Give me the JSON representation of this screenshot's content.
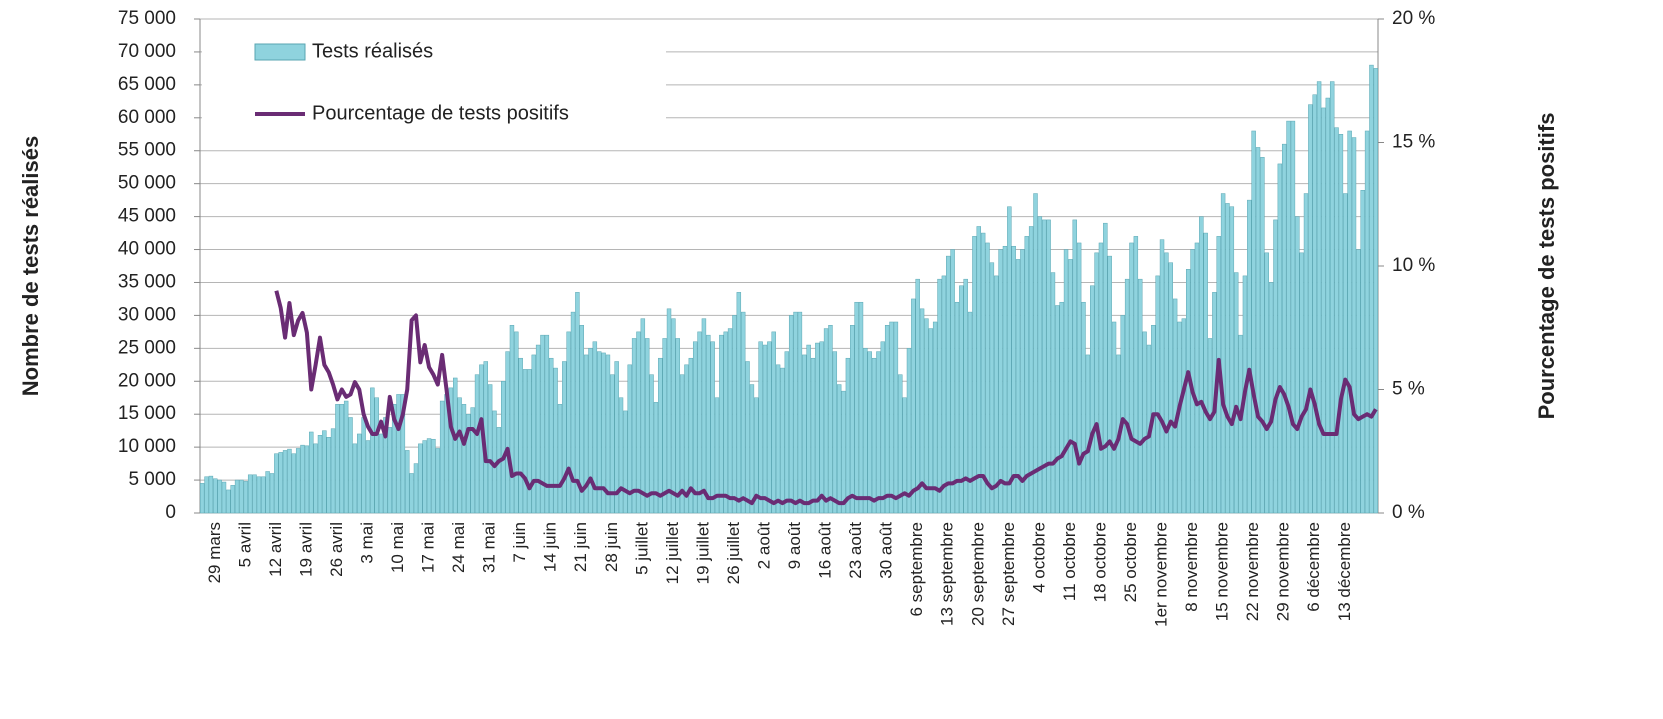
{
  "chart_data": {
    "type": "bar",
    "y_label": "Nombre de tests réalisés",
    "y2_label": "Pourcentage de tests positifs",
    "legend": "upper left",
    "grid": true,
    "categories": [
      null,
      null,
      null,
      "29 mars",
      null,
      null,
      null,
      null,
      null,
      null,
      "5 avril",
      null,
      null,
      null,
      null,
      null,
      null,
      "12 avril",
      null,
      null,
      null,
      null,
      null,
      null,
      "19 avril",
      null,
      null,
      null,
      null,
      null,
      null,
      "26 avril",
      null,
      null,
      null,
      null,
      null,
      null,
      "3 mai",
      null,
      null,
      null,
      null,
      null,
      null,
      "10 mai",
      null,
      null,
      null,
      null,
      null,
      null,
      "17 mai",
      null,
      null,
      null,
      null,
      null,
      null,
      "24 mai",
      null,
      null,
      null,
      null,
      null,
      null,
      "31 mai",
      null,
      null,
      null,
      null,
      null,
      null,
      "7 juin",
      null,
      null,
      null,
      null,
      null,
      null,
      "14 juin",
      null,
      null,
      null,
      null,
      null,
      null,
      "21 juin",
      null,
      null,
      null,
      null,
      null,
      null,
      "28 juin",
      null,
      null,
      null,
      null,
      null,
      null,
      "5 juillet",
      null,
      null,
      null,
      null,
      null,
      null,
      "12 juillet",
      null,
      null,
      null,
      null,
      null,
      null,
      "19 juillet",
      null,
      null,
      null,
      null,
      null,
      null,
      "26 juillet",
      null,
      null,
      null,
      null,
      null,
      null,
      "2 août",
      null,
      null,
      null,
      null,
      null,
      null,
      "9 août",
      null,
      null,
      null,
      null,
      null,
      null,
      "16 août",
      null,
      null,
      null,
      null,
      null,
      null,
      "23 août",
      null,
      null,
      null,
      null,
      null,
      null,
      "30 août",
      null,
      null,
      null,
      null,
      null,
      null,
      "6 septembre",
      null,
      null,
      null,
      null,
      null,
      null,
      "13 septembre",
      null,
      null,
      null,
      null,
      null,
      null,
      "20 septembre",
      null,
      null,
      null,
      null,
      null,
      null,
      "27 septembre",
      null,
      null,
      null,
      null,
      null,
      null,
      "4 octobre",
      null,
      null,
      null,
      null,
      null,
      null,
      "11 octobre",
      null,
      null,
      null,
      null,
      null,
      null,
      "18 octobre",
      null,
      null,
      null,
      null,
      null,
      null,
      "25 octobre",
      null,
      null,
      null,
      null,
      null,
      null,
      "1er novembre",
      null,
      null,
      null,
      null,
      null,
      null,
      "8 novembre",
      null,
      null,
      null,
      null,
      null,
      null,
      "15 novembre",
      null,
      null,
      null,
      null,
      null,
      null,
      "22 novembre",
      null,
      null,
      null,
      null,
      null,
      null,
      "29 novembre",
      null,
      null,
      null,
      null,
      null,
      null,
      "6 décembre",
      null,
      null,
      null,
      null,
      null,
      null,
      "13 décembre",
      null,
      null,
      null,
      null,
      null,
      null,
      null
    ],
    "series": [
      {
        "name": "Tests réalisés",
        "type": "bar",
        "color": "#8fd3de",
        "values": [
          4500,
          5500,
          5600,
          5200,
          5000,
          4700,
          3500,
          4200,
          5000,
          5000,
          4800,
          5800,
          5800,
          5500,
          5500,
          6300,
          6000,
          9000,
          9200,
          9500,
          9700,
          9000,
          9800,
          10300,
          10200,
          12300,
          10500,
          11800,
          12500,
          11500,
          12800,
          16500,
          16500,
          17000,
          14500,
          10500,
          12000,
          14500,
          11000,
          19000,
          17500,
          12000,
          14500,
          13000,
          16500,
          18000,
          18000,
          9500,
          6000,
          7500,
          10500,
          11000,
          11300,
          11200,
          9800,
          17000,
          18000,
          19000,
          20500,
          17500,
          16500,
          15000,
          16000,
          21000,
          22500,
          23000,
          19500,
          15500,
          13000,
          20000,
          24500,
          28500,
          27500,
          23500,
          21800,
          21800,
          24000,
          25500,
          27000,
          27000,
          23500,
          22000,
          16500,
          23000,
          27500,
          30500,
          33500,
          28500,
          24000,
          25000,
          26000,
          24500,
          24300,
          24000,
          21000,
          23000,
          17500,
          15500,
          22500,
          26500,
          27500,
          29500,
          26500,
          21000,
          16800,
          23500,
          26500,
          31000,
          29500,
          26500,
          21000,
          22500,
          23500,
          26000,
          27500,
          29500,
          27000,
          26000,
          17500,
          27000,
          27500,
          28000,
          30000,
          33500,
          30500,
          23000,
          19500,
          17500,
          26000,
          25500,
          26000,
          27500,
          22500,
          22000,
          24500,
          30000,
          30500,
          30500,
          24000,
          25500,
          23500,
          25800,
          26000,
          28000,
          28500,
          24500,
          19500,
          18500,
          23500,
          28500,
          32000,
          32000,
          25000,
          24500,
          23500,
          24500,
          26000,
          28500,
          29000,
          29000,
          21000,
          17500,
          25000,
          32500,
          35500,
          31000,
          29500,
          28000,
          29000,
          35500,
          36000,
          39000,
          40000,
          32000,
          34500,
          35500,
          30500,
          42000,
          43500,
          42500,
          41000,
          38000,
          36000,
          40000,
          40500,
          46500,
          40500,
          38500,
          40000,
          42000,
          43500,
          48500,
          45000,
          44500,
          44500,
          36500,
          31500,
          32000,
          40000,
          38500,
          44500,
          41000,
          32000,
          24000,
          34500,
          39500,
          41000,
          44000,
          39000,
          29000,
          24000,
          30000,
          35500,
          41000,
          42000,
          35500,
          27500,
          25500,
          28500,
          36000,
          41500,
          39500,
          38000,
          32500,
          29000,
          29500,
          37000,
          40000,
          41000,
          45000,
          42500,
          26500,
          33500,
          42000,
          48500,
          47000,
          46500,
          36500,
          27000,
          36000,
          47500,
          58000,
          55500,
          54000,
          39500,
          35000,
          44500,
          53000,
          56000,
          59500,
          59500,
          45000,
          39500,
          48500,
          62000,
          63500,
          65500,
          61500,
          63000,
          65500,
          58500,
          57500,
          48500,
          58000,
          57000,
          40000,
          49000,
          58000,
          68000,
          67500
        ]
      },
      {
        "name": "Pourcentage de tests positifs",
        "type": "line",
        "axis": "y2",
        "color": "#6a2c74",
        "values": [
          null,
          null,
          null,
          null,
          null,
          null,
          null,
          null,
          null,
          null,
          null,
          null,
          null,
          null,
          null,
          null,
          null,
          9.0,
          8.3,
          7.1,
          8.5,
          7.2,
          7.8,
          8.1,
          7.3,
          5.0,
          6.0,
          7.1,
          6.0,
          5.7,
          5.2,
          4.6,
          5.0,
          4.7,
          4.8,
          5.3,
          5.0,
          4.0,
          3.5,
          3.2,
          3.2,
          3.7,
          3.1,
          4.7,
          3.8,
          3.4,
          4.0,
          5.0,
          7.8,
          8.0,
          6.1,
          6.8,
          5.9,
          5.6,
          5.2,
          6.4,
          5.0,
          3.5,
          3.0,
          3.3,
          2.8,
          3.4,
          3.4,
          3.2,
          3.8,
          2.1,
          2.1,
          1.9,
          2.1,
          2.2,
          2.6,
          1.5,
          1.6,
          1.6,
          1.4,
          1.0,
          1.3,
          1.3,
          1.2,
          1.1,
          1.1,
          1.1,
          1.1,
          1.4,
          1.8,
          1.3,
          1.3,
          0.9,
          1.1,
          1.4,
          1.0,
          1.0,
          1.0,
          0.8,
          0.8,
          0.8,
          1.0,
          0.9,
          0.8,
          0.9,
          0.9,
          0.8,
          0.7,
          0.8,
          0.8,
          0.7,
          0.8,
          0.9,
          0.8,
          0.7,
          0.9,
          0.7,
          1.0,
          0.8,
          0.8,
          0.9,
          0.6,
          0.6,
          0.7,
          0.7,
          0.7,
          0.6,
          0.6,
          0.5,
          0.6,
          0.5,
          0.4,
          0.7,
          0.6,
          0.6,
          0.5,
          0.4,
          0.5,
          0.4,
          0.5,
          0.5,
          0.4,
          0.5,
          0.4,
          0.4,
          0.5,
          0.5,
          0.7,
          0.5,
          0.6,
          0.5,
          0.4,
          0.4,
          0.6,
          0.7,
          0.6,
          0.6,
          0.6,
          0.6,
          0.5,
          0.6,
          0.6,
          0.7,
          0.7,
          0.6,
          0.7,
          0.8,
          0.7,
          0.9,
          1.0,
          1.2,
          1.0,
          1.0,
          1.0,
          0.9,
          1.1,
          1.2,
          1.2,
          1.3,
          1.3,
          1.4,
          1.3,
          1.4,
          1.5,
          1.5,
          1.2,
          1.0,
          1.1,
          1.3,
          1.2,
          1.2,
          1.5,
          1.5,
          1.3,
          1.5,
          1.6,
          1.7,
          1.8,
          1.9,
          2.0,
          2.0,
          2.2,
          2.3,
          2.6,
          2.9,
          2.8,
          2.0,
          2.4,
          2.5,
          3.2,
          3.6,
          2.6,
          2.7,
          2.9,
          2.6,
          3.0,
          3.8,
          3.6,
          3.0,
          2.9,
          2.8,
          3.0,
          3.1,
          4.0,
          4.0,
          3.7,
          3.3,
          3.7,
          3.5,
          4.3,
          5.0,
          5.7,
          4.9,
          4.4,
          4.5,
          4.1,
          3.8,
          4.1,
          6.2,
          4.4,
          3.9,
          3.6,
          4.3,
          3.8,
          4.9,
          5.8,
          4.8,
          3.9,
          3.7,
          3.4,
          3.7,
          4.6,
          5.1,
          4.8,
          4.3,
          3.6,
          3.4,
          3.9,
          4.2,
          5.0,
          4.4,
          3.6,
          3.2,
          3.2,
          3.2,
          3.2,
          4.6,
          5.4,
          5.1,
          4.0,
          3.8,
          3.9,
          4.0,
          3.9,
          4.2
        ]
      }
    ],
    "ylim": [
      0,
      75000
    ],
    "yticks": [
      0,
      {
        "value": 5000,
        "label": "5 000"
      },
      {
        "value": 10000,
        "label": "10 000"
      },
      {
        "value": 15000,
        "label": "15 000"
      },
      {
        "value": 20000,
        "label": "20 000"
      },
      {
        "value": 25000,
        "label": "25 000"
      },
      {
        "value": 30000,
        "label": "30 000"
      },
      {
        "value": 35000,
        "label": "35 000"
      },
      {
        "value": 40000,
        "label": "40 000"
      },
      {
        "value": 45000,
        "label": "45 000"
      },
      {
        "value": 50000,
        "label": "50 000"
      },
      {
        "value": 55000,
        "label": "55 000"
      },
      {
        "value": 60000,
        "label": "60 000"
      },
      {
        "value": 65000,
        "label": "65 000"
      },
      {
        "value": 70000,
        "label": "70 000"
      },
      {
        "value": 75000,
        "label": "75 000"
      }
    ],
    "y2lim": [
      0,
      20
    ],
    "y2ticks": [
      {
        "value": 0,
        "label": "0 %"
      },
      {
        "value": 5,
        "label": "5 %"
      },
      {
        "value": 10,
        "label": "10 %"
      },
      {
        "value": 15,
        "label": "15 %"
      },
      {
        "value": 20,
        "label": "20 %"
      }
    ]
  }
}
